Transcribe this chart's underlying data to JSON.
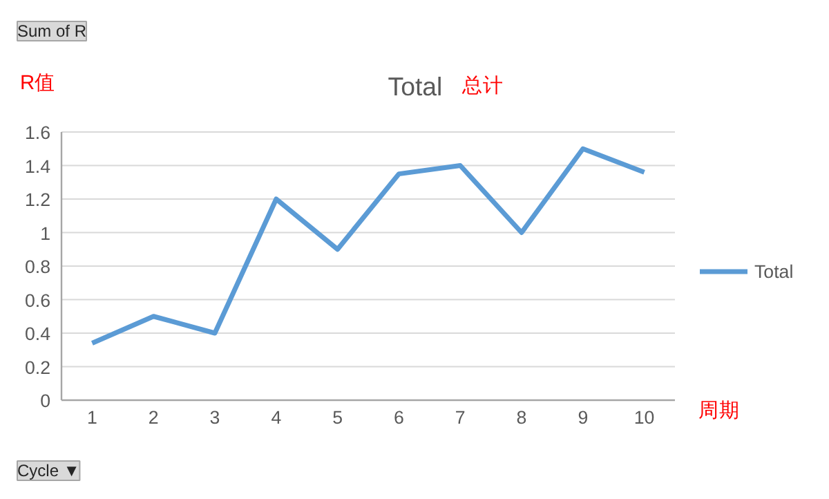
{
  "chart_data": {
    "type": "line",
    "title": "Total",
    "categories": [
      "1",
      "2",
      "3",
      "4",
      "5",
      "6",
      "7",
      "8",
      "9",
      "10"
    ],
    "series": [
      {
        "name": "Total",
        "color": "#5b9bd5",
        "values": [
          0.34,
          0.5,
          0.4,
          1.2,
          0.9,
          1.35,
          1.4,
          1.0,
          1.5,
          1.36
        ]
      }
    ],
    "ylim": [
      0,
      1.6
    ],
    "yticks": [
      0,
      0.2,
      0.4,
      0.6,
      0.8,
      1,
      1.2,
      1.4,
      1.6
    ],
    "grid": "y",
    "legend": "right",
    "marker": "none",
    "line_style": "solid",
    "annotations": [
      "Sum of R",
      "R值",
      "总计",
      "Cycle ▼",
      "周期"
    ]
  }
}
